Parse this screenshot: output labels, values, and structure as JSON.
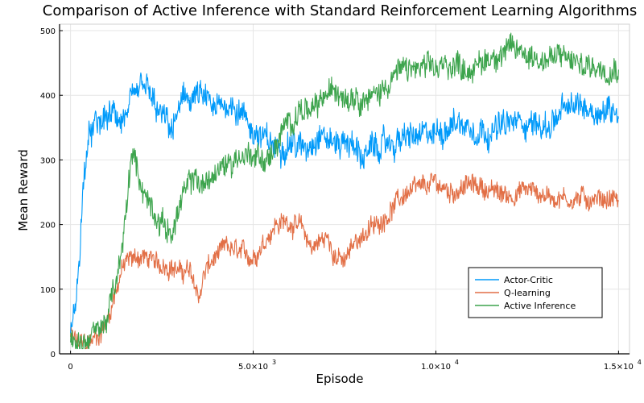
{
  "chart_data": {
    "type": "line",
    "title": "Comparison of Active Inference with Standard Reinforcement Learning Algorithms",
    "xlabel": "Episode",
    "ylabel": "Mean Reward",
    "xlim": [
      -300,
      15300
    ],
    "ylim": [
      0,
      510
    ],
    "grid": true,
    "legend_position": "bottom-right",
    "x_ticks": [
      {
        "value": 0,
        "label": "0",
        "exp": ""
      },
      {
        "value": 5000,
        "label": "5.0×10",
        "exp": "3"
      },
      {
        "value": 10000,
        "label": "1.0×10",
        "exp": "4"
      },
      {
        "value": 15000,
        "label": "1.5×10",
        "exp": "4"
      }
    ],
    "y_ticks": [
      {
        "value": 0,
        "label": "0"
      },
      {
        "value": 100,
        "label": "100"
      },
      {
        "value": 200,
        "label": "200"
      },
      {
        "value": 300,
        "label": "300"
      },
      {
        "value": 400,
        "label": "400"
      },
      {
        "value": 500,
        "label": "500"
      }
    ],
    "series": [
      {
        "name": "Actor-Critic",
        "color": "#009AFA",
        "noise": 22,
        "x": [
          0,
          150,
          250,
          350,
          450,
          600,
          800,
          1000,
          1200,
          1400,
          1600,
          1800,
          2000,
          2200,
          2400,
          2600,
          2800,
          3000,
          3200,
          3500,
          3800,
          4000,
          4300,
          4600,
          5000,
          5300,
          5600,
          6000,
          6400,
          6800,
          7200,
          7600,
          8000,
          8400,
          8800,
          9200,
          9600,
          10000,
          10500,
          11000,
          11500,
          12000,
          12500,
          13000,
          13500,
          14000,
          14500,
          15000
        ],
        "y": [
          30,
          80,
          160,
          260,
          320,
          345,
          355,
          365,
          370,
          360,
          375,
          395,
          420,
          395,
          370,
          360,
          345,
          385,
          395,
          400,
          385,
          375,
          390,
          380,
          345,
          330,
          320,
          330,
          315,
          345,
          325,
          330,
          305,
          320,
          325,
          335,
          335,
          340,
          360,
          350,
          345,
          355,
          360,
          350,
          375,
          385,
          375,
          380
        ]
      },
      {
        "name": "Q-learning",
        "color": "#E26F46",
        "noise": 16,
        "x": [
          0,
          200,
          400,
          600,
          800,
          1000,
          1200,
          1400,
          1600,
          1800,
          2000,
          2200,
          2400,
          2600,
          2800,
          3000,
          3200,
          3400,
          3500,
          3700,
          4000,
          4300,
          4600,
          5000,
          5300,
          5600,
          6000,
          6300,
          6600,
          7000,
          7300,
          7500,
          7800,
          8000,
          8400,
          8800,
          9200,
          9600,
          10000,
          10400,
          10800,
          11200,
          11600,
          12000,
          12500,
          13000,
          13500,
          14000,
          14500,
          15000
        ],
        "y": [
          30,
          15,
          15,
          20,
          30,
          50,
          90,
          130,
          145,
          150,
          150,
          145,
          135,
          140,
          135,
          125,
          130,
          110,
          85,
          130,
          150,
          165,
          155,
          150,
          175,
          200,
          205,
          195,
          165,
          180,
          150,
          140,
          175,
          185,
          200,
          225,
          250,
          255,
          265,
          250,
          260,
          260,
          250,
          245,
          255,
          245,
          240,
          240,
          240,
          240
        ]
      },
      {
        "name": "Active Inference",
        "color": "#3DA44D",
        "noise": 20,
        "x": [
          0,
          200,
          400,
          600,
          800,
          1000,
          1200,
          1400,
          1500,
          1600,
          1700,
          1800,
          2000,
          2200,
          2400,
          2600,
          2800,
          3000,
          3200,
          3400,
          3600,
          3800,
          4000,
          4300,
          4600,
          5000,
          5300,
          5500,
          5700,
          6000,
          6300,
          6600,
          7000,
          7300,
          7600,
          7800,
          8000,
          8400,
          8800,
          9200,
          9600,
          10000,
          10500,
          11000,
          11500,
          12000,
          12500,
          13000,
          13500,
          14000,
          14500,
          15000
        ],
        "y": [
          20,
          15,
          20,
          30,
          40,
          55,
          100,
          150,
          210,
          270,
          310,
          290,
          250,
          230,
          210,
          195,
          190,
          230,
          255,
          275,
          260,
          270,
          280,
          295,
          305,
          310,
          300,
          305,
          330,
          360,
          380,
          370,
          400,
          410,
          400,
          405,
          395,
          400,
          430,
          440,
          440,
          440,
          450,
          440,
          460,
          470,
          465,
          455,
          460,
          445,
          445,
          445
        ]
      }
    ]
  }
}
